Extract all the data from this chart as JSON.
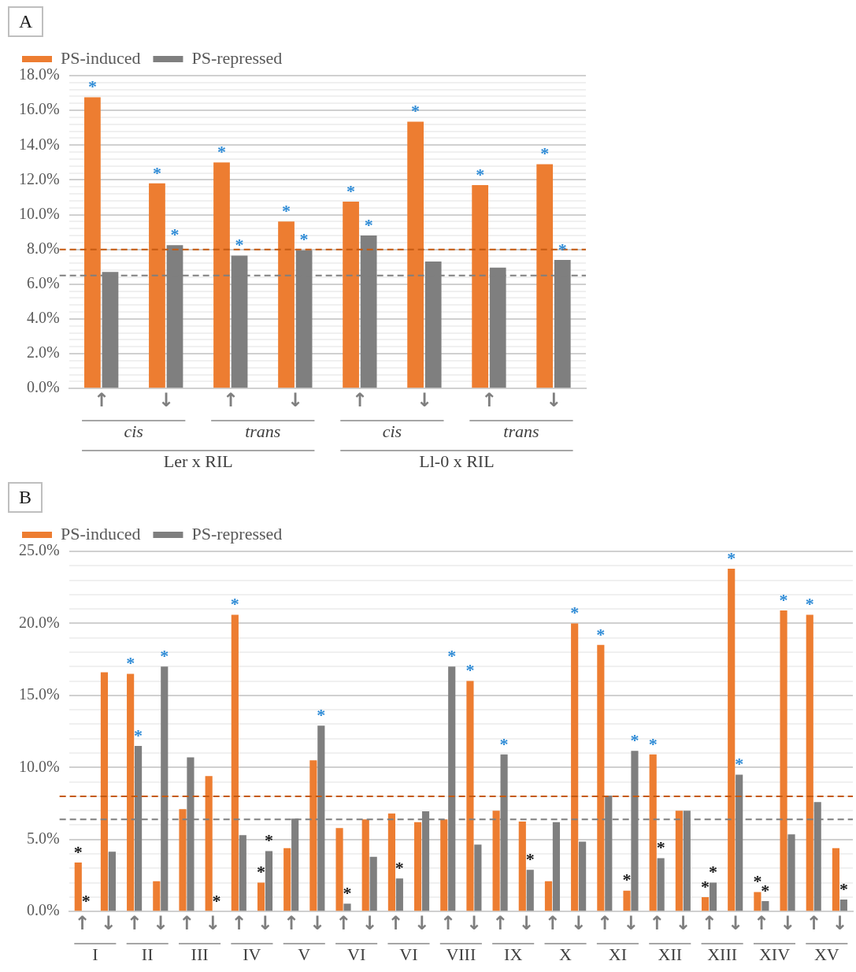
{
  "chart_data": [
    {
      "type": "bar",
      "title": "A",
      "categories": [
        "↑",
        "↓",
        "↑",
        "↓",
        "↑",
        "↓",
        "↑",
        "↓"
      ],
      "series": [
        {
          "name": "PS-induced",
          "color": "#ed7d31",
          "values": [
            16.75,
            11.8,
            13.0,
            9.6,
            10.75,
            15.35,
            11.7,
            12.9
          ],
          "value_labels": [
            "*",
            "*",
            "*",
            "*",
            "*",
            "*",
            "*",
            "*"
          ]
        },
        {
          "name": "PS-repressed",
          "color": "#7f7f7f",
          "values": [
            6.7,
            8.25,
            7.65,
            7.95,
            8.8,
            7.3,
            6.95,
            7.4
          ],
          "value_labels": [
            null,
            "*",
            "*",
            "*",
            "*",
            null,
            null,
            "*"
          ]
        }
      ],
      "ylim": [
        0,
        18
      ],
      "yticks": [
        {
          "value": 0,
          "label": "0.0%"
        },
        {
          "value": 0.4,
          "label": null
        },
        {
          "value": 0.8,
          "label": null
        },
        {
          "value": 1.2,
          "label": null
        },
        {
          "value": 1.6,
          "label": null
        },
        {
          "value": 2,
          "label": "2.0%"
        },
        {
          "value": 2.4,
          "label": null
        },
        {
          "value": 2.8,
          "label": null
        },
        {
          "value": 3.2,
          "label": null
        },
        {
          "value": 3.6,
          "label": null
        },
        {
          "value": 4,
          "label": "4.0%"
        },
        {
          "value": 4.4,
          "label": null
        },
        {
          "value": 4.8,
          "label": null
        },
        {
          "value": 5.2,
          "label": null
        },
        {
          "value": 5.6,
          "label": null
        },
        {
          "value": 6,
          "label": "6.0%"
        },
        {
          "value": 6.4,
          "label": null
        },
        {
          "value": 6.8,
          "label": null
        },
        {
          "value": 7.2,
          "label": null
        },
        {
          "value": 7.6,
          "label": null
        },
        {
          "value": 8,
          "label": "8.0%"
        },
        {
          "value": 8.4,
          "label": null
        },
        {
          "value": 8.8,
          "label": null
        },
        {
          "value": 9.2,
          "label": null
        },
        {
          "value": 9.6,
          "label": null
        },
        {
          "value": 10,
          "label": "10.0%"
        },
        {
          "value": 10.4,
          "label": null
        },
        {
          "value": 10.8,
          "label": null
        },
        {
          "value": 11.2,
          "label": null
        },
        {
          "value": 11.6,
          "label": null
        },
        {
          "value": 12,
          "label": "12.0%"
        },
        {
          "value": 12.4,
          "label": null
        },
        {
          "value": 12.8,
          "label": null
        },
        {
          "value": 13.2,
          "label": null
        },
        {
          "value": 13.6,
          "label": null
        },
        {
          "value": 14,
          "label": "14.0%"
        },
        {
          "value": 14.4,
          "label": null
        },
        {
          "value": 14.8,
          "label": null
        },
        {
          "value": 15.2,
          "label": null
        },
        {
          "value": 15.6,
          "label": null
        },
        {
          "value": 16,
          "label": "16.0%"
        },
        {
          "value": 16.4,
          "label": null
        },
        {
          "value": 16.8,
          "label": null
        },
        {
          "value": 17.2,
          "label": null
        },
        {
          "value": 17.6,
          "label": null
        },
        {
          "value": 18,
          "label": "18.0%"
        }
      ],
      "grid": "y",
      "legend": "top left",
      "ref_lines": [
        {
          "axis": "y",
          "value": 8,
          "color": "#c55a11",
          "line_style": "dashed"
        },
        {
          "axis": "y",
          "value": 6.5,
          "color": "#7f7f7f",
          "line_style": "dashed"
        }
      ],
      "annotations": [
        "cis",
        "trans",
        "cis",
        "trans",
        "Ler x RIL",
        "Ll-0 x RIL"
      ]
    },
    {
      "type": "bar",
      "title": "B",
      "categories": [
        "↑",
        "↓",
        "↑",
        "↓",
        "↑",
        "↓",
        "↑",
        "↓",
        "↑",
        "↓",
        "↑",
        "↓",
        "↑",
        "↓",
        "↑",
        "↓",
        "↑",
        "↓",
        "↑",
        "↓",
        "↑",
        "↓",
        "↑",
        "↓",
        "↑",
        "↓",
        "↑",
        "↓",
        "↑",
        "↓"
      ],
      "series": [
        {
          "name": "PS-induced",
          "color": "#ed7d31",
          "values": [
            3.4,
            16.6,
            16.5,
            2.1,
            7.1,
            9.4,
            20.6,
            2.0,
            4.4,
            10.5,
            5.8,
            6.4,
            6.8,
            6.2,
            6.4,
            16.0,
            7.0,
            6.25,
            2.1,
            20.0,
            18.5,
            1.45,
            10.9,
            7.0,
            1.0,
            23.8,
            1.35,
            20.9,
            20.6,
            4.4
          ],
          "value_labels": [
            "*",
            null,
            "*",
            null,
            null,
            null,
            "*",
            "*",
            null,
            null,
            null,
            null,
            null,
            null,
            null,
            "*",
            null,
            null,
            null,
            "*",
            "*",
            "*",
            "*",
            null,
            "*",
            "*",
            "*",
            "*",
            "*",
            null
          ]
        },
        {
          "name": "PS-repressed",
          "color": "#7f7f7f",
          "values": [
            0,
            4.15,
            11.5,
            17.0,
            10.7,
            0,
            5.3,
            4.2,
            6.45,
            12.9,
            0.55,
            3.8,
            2.3,
            6.95,
            17.0,
            4.65,
            10.9,
            2.9,
            6.2,
            4.85,
            8.05,
            11.15,
            3.7,
            7.0,
            2.0,
            9.5,
            0.72,
            5.35,
            7.6,
            0.83
          ],
          "value_labels": [
            "*",
            null,
            "*",
            "*",
            null,
            "*",
            null,
            "*",
            null,
            "*",
            "*",
            null,
            "*",
            null,
            "*",
            null,
            "*",
            "*",
            null,
            null,
            null,
            "*",
            "*",
            null,
            "*",
            "*",
            "*",
            null,
            null,
            "*"
          ]
        }
      ],
      "ylim": [
        0,
        25
      ],
      "yticks": [
        {
          "value": 0,
          "label": "0.0%"
        },
        {
          "value": 1,
          "label": null
        },
        {
          "value": 2,
          "label": null
        },
        {
          "value": 3,
          "label": null
        },
        {
          "value": 4,
          "label": null
        },
        {
          "value": 5,
          "label": "5.0%"
        },
        {
          "value": 6,
          "label": null
        },
        {
          "value": 7,
          "label": null
        },
        {
          "value": 8,
          "label": null
        },
        {
          "value": 9,
          "label": null
        },
        {
          "value": 10,
          "label": "10.0%"
        },
        {
          "value": 11,
          "label": null
        },
        {
          "value": 12,
          "label": null
        },
        {
          "value": 13,
          "label": null
        },
        {
          "value": 14,
          "label": null
        },
        {
          "value": 15,
          "label": "15.0%"
        },
        {
          "value": 16,
          "label": null
        },
        {
          "value": 17,
          "label": null
        },
        {
          "value": 18,
          "label": null
        },
        {
          "value": 19,
          "label": null
        },
        {
          "value": 20,
          "label": "20.0%"
        },
        {
          "value": 21,
          "label": null
        },
        {
          "value": 22,
          "label": null
        },
        {
          "value": 23,
          "label": null
        },
        {
          "value": 24,
          "label": null
        },
        {
          "value": 25,
          "label": "25.0%"
        }
      ],
      "grid": "y",
      "legend": "top left",
      "ref_lines": [
        {
          "axis": "y",
          "value": 8,
          "color": "#c55a11",
          "line_style": "dashed"
        },
        {
          "axis": "y",
          "value": 6.4,
          "color": "#7f7f7f",
          "line_style": "dashed"
        }
      ],
      "annotations": [
        "I",
        "II",
        "III",
        "IV",
        "V",
        "VI",
        "VI",
        "VIII",
        "IX",
        "X",
        "XI",
        "XII",
        "XIII",
        "XIV",
        "XV"
      ]
    }
  ]
}
